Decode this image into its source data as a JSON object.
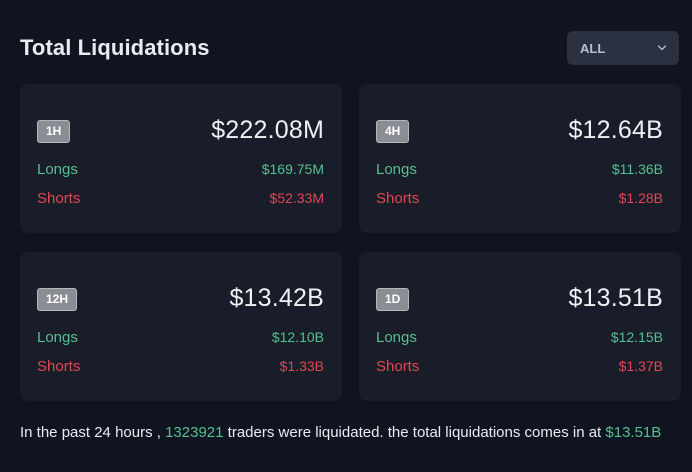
{
  "header": {
    "title": "Total Liquidations",
    "filter": {
      "selected": "ALL"
    }
  },
  "cards": [
    {
      "period": "1H",
      "total": "$222.08M",
      "longs_label": "Longs",
      "longs_value": "$169.75M",
      "shorts_label": "Shorts",
      "shorts_value": "$52.33M"
    },
    {
      "period": "4H",
      "total": "$12.64B",
      "longs_label": "Longs",
      "longs_value": "$11.36B",
      "shorts_label": "Shorts",
      "shorts_value": "$1.28B"
    },
    {
      "period": "12H",
      "total": "$13.42B",
      "longs_label": "Longs",
      "longs_value": "$12.10B",
      "shorts_label": "Shorts",
      "shorts_value": "$1.33B"
    },
    {
      "period": "1D",
      "total": "$13.51B",
      "longs_label": "Longs",
      "longs_value": "$12.15B",
      "shorts_label": "Shorts",
      "shorts_value": "$1.37B"
    }
  ],
  "summary": {
    "prefix": "In the past 24 hours , ",
    "traders_count": "1323921",
    "middle": " traders were liquidated. the total liquidations comes in at ",
    "total_value": "$13.51B"
  },
  "colors": {
    "background": "#0f1420",
    "card": "#181d29",
    "longs": "#56c08e",
    "shorts": "#e04852",
    "badge": "#8a8d93"
  }
}
